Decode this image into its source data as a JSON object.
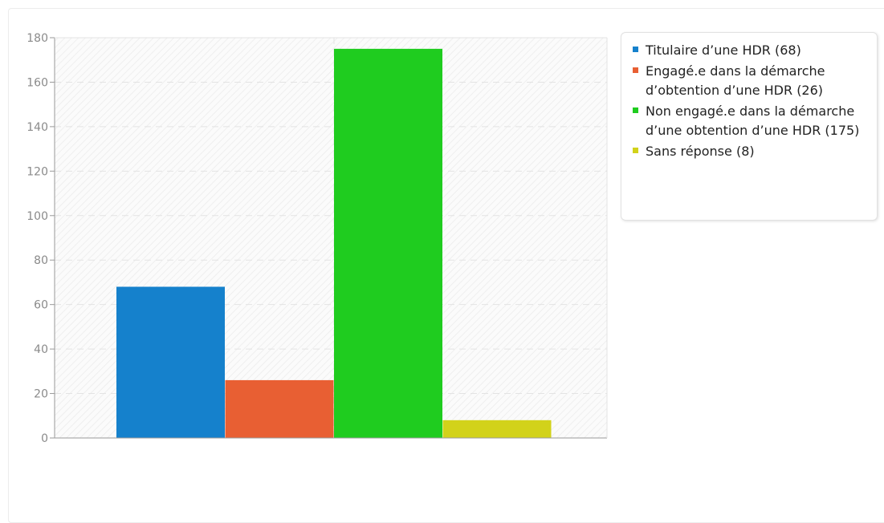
{
  "chart_data": {
    "type": "bar",
    "categories": [
      "Titulaire d’une HDR",
      "Engagé.e dans la démarche d’obtention d’une HDR",
      "Non engagé.e dans la démarche d’une obtention d’une HDR",
      "Sans réponse"
    ],
    "values": [
      68,
      26,
      175,
      8
    ],
    "colors": [
      "#1581cc",
      "#e85f33",
      "#1fcc1f",
      "#d2d21a"
    ],
    "ylim": [
      0,
      180
    ],
    "yticks": [
      "0",
      "20",
      "40",
      "60",
      "80",
      "100",
      "120",
      "140",
      "160",
      "180"
    ],
    "grid": true,
    "legend_position": "right",
    "legend": [
      {
        "label": "Titulaire d’une HDR (68)",
        "color": "#1581cc"
      },
      {
        "label": "Engagé.e dans la démarche d’obtention d’une HDR (26)",
        "color": "#e85f33"
      },
      {
        "label": "Non engagé.e dans la démarche d’une obtention d’une HDR (175)",
        "color": "#1fcc1f"
      },
      {
        "label": "Sans réponse (8)",
        "color": "#d2d21a"
      }
    ]
  }
}
